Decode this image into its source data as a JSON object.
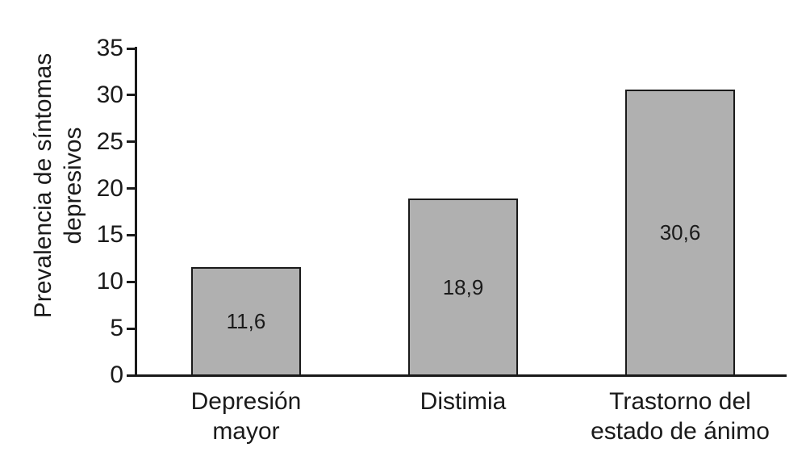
{
  "chart_data": {
    "type": "bar",
    "title": "",
    "xlabel": "",
    "ylabel": "Prevalencia de síntomas\ndepresivos",
    "categories": [
      "Depresión\nmayor",
      "Distimia",
      "Trastorno del\nestado de ánimo"
    ],
    "values": [
      11.6,
      18.9,
      30.6
    ],
    "value_labels": [
      "11,6",
      "18,9",
      "30,6"
    ],
    "ylim": [
      0,
      35
    ],
    "yticks": [
      0,
      5,
      10,
      15,
      20,
      25,
      30,
      35
    ],
    "grid": false,
    "legend": "none",
    "bar_fill_color": "#b0b0b0",
    "bar_border_color": "#1a1a1a",
    "axis_color": "#1a1a1a",
    "text_color": "#1a1a1a",
    "background_color": "#ffffff"
  }
}
